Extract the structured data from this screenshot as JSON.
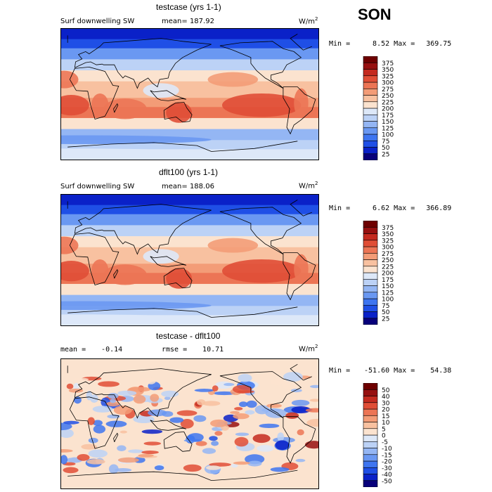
{
  "season": "SON",
  "panels": [
    {
      "id": "testcase",
      "title": "testcase (yrs 1-1)",
      "left_label": "Surf downwelling SW",
      "stat_label": "mean=",
      "stat_value": "187.92",
      "units_base": "W/m",
      "units_exp": "2",
      "min_label": "Min =",
      "min_value": "8.52",
      "max_label": "Max =",
      "max_value": "369.75"
    },
    {
      "id": "dflt100",
      "title": "dflt100 (yrs 1-1)",
      "left_label": "Surf downwelling SW",
      "stat_label": "mean=",
      "stat_value": "188.06",
      "units_base": "W/m",
      "units_exp": "2",
      "min_label": "Min =",
      "min_value": "6.62",
      "max_label": "Max =",
      "max_value": "366.89"
    },
    {
      "id": "diff",
      "title": "testcase - dflt100",
      "mean_label": "mean =",
      "mean_value": "-0.14",
      "rmse_label": "rmse =",
      "rmse_value": "10.71",
      "units_base": "W/m",
      "units_exp": "2",
      "min_label": "Min =",
      "min_value": "-51.60",
      "max_label": "Max =",
      "max_value": "54.38"
    }
  ],
  "chart_data": [
    {
      "type": "heatmap",
      "title": "testcase (yrs 1-1)",
      "variable": "Surf downwelling SW",
      "units": "W/m2",
      "colorbar_levels": [
        25,
        50,
        75,
        100,
        125,
        150,
        175,
        200,
        225,
        250,
        275,
        300,
        325,
        350,
        375
      ],
      "colorbar_colors": [
        "#08007a",
        "#0a21c8",
        "#1f4fe6",
        "#3e75f0",
        "#6a98f2",
        "#94b6f4",
        "#bcd2f6",
        "#dde8f8",
        "#fbe3cf",
        "#f8c1a0",
        "#f39c77",
        "#ec7555",
        "#e04e36",
        "#c42a1f",
        "#961010",
        "#6e0000"
      ],
      "zonal_band_means": {
        "lat": [
          80,
          70,
          55,
          40,
          25,
          10,
          0,
          -10,
          -25,
          -40,
          -55,
          -70,
          -80
        ],
        "value": [
          25,
          60,
          100,
          150,
          220,
          240,
          230,
          270,
          280,
          200,
          140,
          150,
          180
        ]
      },
      "mean": 187.92,
      "min": 8.52,
      "max": 369.75
    },
    {
      "type": "heatmap",
      "title": "dflt100 (yrs 1-1)",
      "variable": "Surf downwelling SW",
      "units": "W/m2",
      "colorbar_levels": [
        25,
        50,
        75,
        100,
        125,
        150,
        175,
        200,
        225,
        250,
        275,
        300,
        325,
        350,
        375
      ],
      "colorbar_colors": [
        "#08007a",
        "#0a21c8",
        "#1f4fe6",
        "#3e75f0",
        "#6a98f2",
        "#94b6f4",
        "#bcd2f6",
        "#dde8f8",
        "#fbe3cf",
        "#f8c1a0",
        "#f39c77",
        "#ec7555",
        "#e04e36",
        "#c42a1f",
        "#961010",
        "#6e0000"
      ],
      "zonal_band_means": {
        "lat": [
          80,
          70,
          55,
          40,
          25,
          10,
          0,
          -10,
          -25,
          -40,
          -55,
          -70,
          -80
        ],
        "value": [
          25,
          60,
          100,
          150,
          220,
          240,
          230,
          270,
          280,
          200,
          140,
          150,
          180
        ]
      },
      "mean": 188.06,
      "min": 6.62,
      "max": 366.89
    },
    {
      "type": "heatmap",
      "title": "testcase - dflt100",
      "units": "W/m2",
      "colorbar_levels": [
        "-50",
        "-40",
        "-30",
        "-20",
        "-15",
        "-10",
        "-5",
        "0",
        "5",
        "10",
        "15",
        "20",
        "30",
        "40",
        "50"
      ],
      "colorbar_colors": [
        "#08007a",
        "#0a21c8",
        "#1f4fe6",
        "#3e75f0",
        "#6a98f2",
        "#94b6f4",
        "#bcd2f6",
        "#dde8f8",
        "#fbe3cf",
        "#f8c1a0",
        "#f39c77",
        "#ec7555",
        "#e04e36",
        "#c42a1f",
        "#961010",
        "#6e0000"
      ],
      "mean": -0.14,
      "rmse": 10.71,
      "min": -51.6,
      "max": 54.38
    }
  ]
}
